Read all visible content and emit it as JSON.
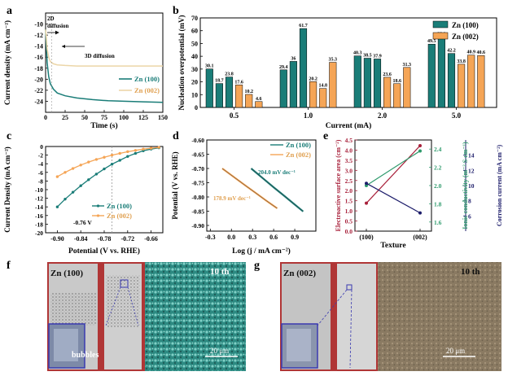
{
  "colors": {
    "teal": "#1a7d78",
    "orange": "#f5a556",
    "orange_line": "#ecd6a8",
    "dark_red": "#a8203a",
    "dark_green": "#2e9a6c",
    "navy": "#1c1c6a"
  },
  "panels": {
    "a": "a",
    "b": "b",
    "c": "c",
    "d": "d",
    "e": "e",
    "f": "f",
    "g": "g"
  },
  "chart_data": [
    {
      "id": "a",
      "type": "line",
      "xlabel": "Time (s)",
      "ylabel": "Current density (mA cm⁻²)",
      "xlim": [
        0,
        150
      ],
      "ylim": [
        -26,
        -8
      ],
      "xticks": [
        "0",
        "25",
        "50",
        "75",
        "100",
        "125",
        "150"
      ],
      "yticks": [
        "-10",
        "-12",
        "-14",
        "-16",
        "-18",
        "-20",
        "-22",
        "-24"
      ],
      "annotations": [
        "2D diffusion",
        "3D diffusion"
      ],
      "series": [
        {
          "name": "Zn (100)",
          "color": "teal",
          "x": [
            0,
            1,
            2,
            4,
            6,
            10,
            15,
            25,
            40,
            60,
            80,
            100,
            125,
            150
          ],
          "y": [
            -11,
            -14,
            -17,
            -19.5,
            -20.8,
            -21.8,
            -22.5,
            -23.0,
            -23.4,
            -23.7,
            -23.9,
            -24.0,
            -24.1,
            -24.2
          ]
        },
        {
          "name": "Zn (002)",
          "color": "orange_line",
          "x": [
            0,
            1,
            2,
            4,
            6,
            10,
            15,
            25,
            40,
            60,
            80,
            100,
            125,
            150
          ],
          "y": [
            -11,
            -12.5,
            -14.5,
            -16.0,
            -16.8,
            -17.2,
            -17.4,
            -17.5,
            -17.6,
            -17.6,
            -17.6,
            -17.6,
            -17.6,
            -17.6
          ]
        }
      ]
    },
    {
      "id": "b",
      "type": "bar",
      "xlabel": "Current (mA)",
      "ylabel": "Nucleation overpotential (mV)",
      "ylim": [
        0,
        70
      ],
      "yticks": [
        "0",
        "10",
        "20",
        "30",
        "40",
        "50",
        "60",
        "70"
      ],
      "categories": [
        "0.5",
        "1.0",
        "2.0",
        "5.0"
      ],
      "series": [
        {
          "name": "Zn (100)",
          "color": "teal",
          "groups": [
            [
              30.1,
              18.7,
              23.8
            ],
            [
              29.4,
              36,
              61.7
            ],
            [
              40.3,
              38.5,
              37.9
            ],
            [
              49.5,
              55.2,
              42.2
            ]
          ]
        },
        {
          "name": "Zn (002)",
          "color": "orange",
          "groups": [
            [
              17.6,
              10.2,
              4.6
            ],
            [
              20.2,
              14.8,
              35.3
            ],
            [
              23.6,
              18.6,
              31.3
            ],
            [
              33.8,
              40.9,
              40.6
            ]
          ]
        }
      ],
      "labels": [
        [
          "30.1",
          "18.7",
          "23.8",
          "17.6",
          "10.2",
          "4.6"
        ],
        [
          "29.4",
          "36",
          "61.7",
          "20.2",
          "14.8",
          "35.3"
        ],
        [
          "40.3",
          "38.5",
          "37.9",
          "23.6",
          "18.6",
          "31.3"
        ],
        [
          "49.5",
          "55.2",
          "42.2",
          "33.8",
          "40.9",
          "40.6"
        ]
      ]
    },
    {
      "id": "c",
      "type": "line",
      "xlabel": "Potential (V vs. RHE)",
      "ylabel": "Current Density (mA cm⁻²)",
      "xlim": [
        -0.93,
        -0.63
      ],
      "ylim": [
        -20,
        0
      ],
      "xticks": [
        "-0.90",
        "-0.84",
        "-0.78",
        "-0.72",
        "-0.66"
      ],
      "yticks": [
        "0",
        "-2",
        "-4",
        "-6",
        "-8",
        "-10",
        "-12",
        "-14",
        "-16",
        "-18",
        "-20"
      ],
      "annotation": "-0.76 V",
      "annotation_x": -0.76,
      "series": [
        {
          "name": "Zn (100)",
          "color": "teal",
          "x": [
            -0.9,
            -0.88,
            -0.86,
            -0.84,
            -0.82,
            -0.8,
            -0.78,
            -0.76,
            -0.74,
            -0.72,
            -0.7,
            -0.68,
            -0.66,
            -0.64
          ],
          "y": [
            -14.0,
            -12.2,
            -10.6,
            -9.1,
            -7.7,
            -6.4,
            -5.2,
            -4.1,
            -3.2,
            -2.3,
            -1.6,
            -1.0,
            -0.6,
            -0.3
          ]
        },
        {
          "name": "Zn (002)",
          "color": "orange",
          "x": [
            -0.9,
            -0.88,
            -0.86,
            -0.84,
            -0.82,
            -0.8,
            -0.78,
            -0.76,
            -0.74,
            -0.72,
            -0.7,
            -0.68,
            -0.66,
            -0.64
          ],
          "y": [
            -7.0,
            -6.0,
            -5.1,
            -4.3,
            -3.6,
            -3.0,
            -2.5,
            -2.0,
            -1.6,
            -1.2,
            -0.9,
            -0.6,
            -0.4,
            -0.2
          ]
        }
      ]
    },
    {
      "id": "d",
      "type": "line",
      "xlabel": "Log (j / mA cm⁻²)",
      "ylabel": "Potential (V vs. RHE)",
      "xlim": [
        -0.35,
        1.2
      ],
      "ylim": [
        -0.92,
        -0.6
      ],
      "xticks": [
        "-0.3",
        "0.0",
        "0.3",
        "0.6",
        "0.9"
      ],
      "yticks": [
        "-0.60",
        "-0.65",
        "-0.70",
        "-0.75",
        "-0.80",
        "-0.85",
        "-0.90"
      ],
      "annotations": [
        "204.0 mV dec⁻¹",
        "178.9 mV dec⁻¹"
      ],
      "series": [
        {
          "name": "Zn (100)",
          "color": "teal",
          "x": [
            0.28,
            0.45,
            0.6,
            0.75,
            0.9,
            1.02
          ],
          "y": [
            -0.7,
            -0.735,
            -0.766,
            -0.796,
            -0.827,
            -0.851
          ]
        },
        {
          "name": "Zn (002)",
          "color": "orange",
          "x": [
            -0.13,
            0.05,
            0.2,
            0.35,
            0.5,
            0.65
          ],
          "y": [
            -0.7,
            -0.733,
            -0.76,
            -0.787,
            -0.814,
            -0.84
          ]
        }
      ]
    },
    {
      "id": "e",
      "type": "line",
      "xlabel": "Texture",
      "categories": [
        "(100)",
        "(002)"
      ],
      "axes": [
        {
          "label": "Electroactive surface area (cm⁻²)",
          "color": "dark_red",
          "ylim": [
            0,
            4.5
          ],
          "ticks": [
            "0.0",
            "0.5",
            "1.0",
            "1.5",
            "2.0",
            "2.5",
            "3.0",
            "3.5",
            "4.0",
            "4.5"
          ]
        },
        {
          "label": "Ionic conductivity (m⁻² S cm⁻¹)",
          "color": "dark_green",
          "ylim": [
            1.5,
            2.5
          ],
          "ticks": [
            "1.6",
            "1.8",
            "2.0",
            "2.2",
            "2.4"
          ]
        },
        {
          "label": "Corrosion current (mA cm⁻²)",
          "color": "navy",
          "ylim": [
            4,
            16
          ],
          "ticks": [
            "6",
            "8",
            "10",
            "12",
            "14"
          ]
        }
      ],
      "series": [
        {
          "axis": 0,
          "color": "dark_red",
          "values": [
            1.38,
            4.22
          ]
        },
        {
          "axis": 1,
          "color": "dark_green",
          "values": [
            2.0,
            2.38
          ]
        },
        {
          "axis": 2,
          "color": "navy",
          "values": [
            10.3,
            6.4
          ]
        }
      ]
    }
  ],
  "photos": {
    "f": {
      "label": "Zn (100)",
      "inset_label": "bubbles",
      "cycle": "10 th",
      "scale": "20 μm"
    },
    "g": {
      "label": "Zn (002)",
      "cycle": "10 th",
      "scale": "20 μm"
    }
  }
}
